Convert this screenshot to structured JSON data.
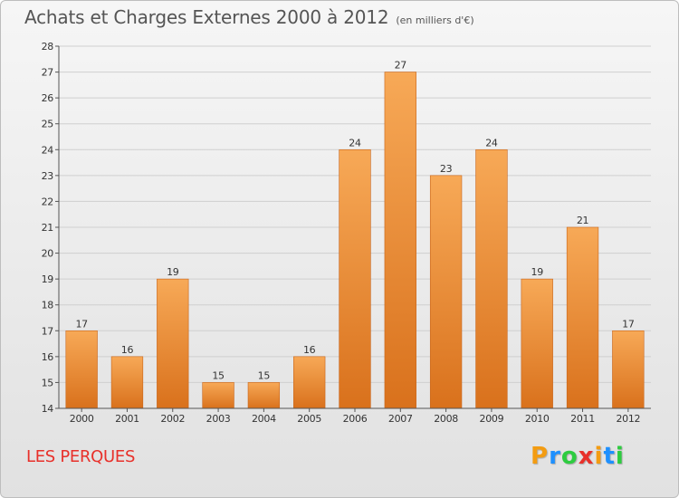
{
  "header": {
    "title": "Achats et Charges Externes 2000 à 2012",
    "unit": "(en milliers d'€)"
  },
  "footer": {
    "commune": "LES PERQUES",
    "logo_text": "Proxiti",
    "logo_colors": [
      "#f39c12",
      "#1e90ff",
      "#2ecc40",
      "#e8302a",
      "#f39c12",
      "#1e90ff",
      "#2ecc40"
    ]
  },
  "colors": {
    "bar_top": "#f7a957",
    "bar_bottom": "#d9711c",
    "bar_edge": "#c8651a",
    "grid": "#cfcfcf",
    "axis": "#555555"
  },
  "chart_data": {
    "type": "bar",
    "title": "Achats et Charges Externes 2000 à 2012",
    "xlabel": "",
    "ylabel": "",
    "categories": [
      "2000",
      "2001",
      "2002",
      "2003",
      "2004",
      "2005",
      "2006",
      "2007",
      "2008",
      "2009",
      "2010",
      "2011",
      "2012"
    ],
    "values": [
      17,
      16,
      19,
      15,
      15,
      16,
      24,
      27,
      23,
      24,
      19,
      21,
      17
    ],
    "ylim": [
      14,
      28
    ],
    "yticks": [
      14,
      15,
      16,
      17,
      18,
      19,
      20,
      21,
      22,
      23,
      24,
      25,
      26,
      27,
      28
    ],
    "grid": true,
    "data_labels": true
  }
}
